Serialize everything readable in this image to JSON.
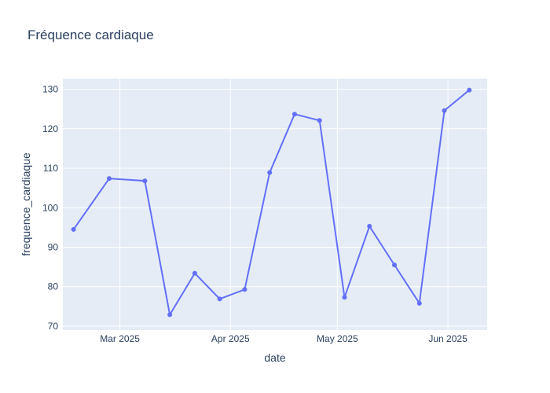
{
  "chart_data": {
    "type": "line",
    "title": "Fréquence cardiaque",
    "xlabel": "date",
    "ylabel": "frequence_cardiaque",
    "x_ticks": [
      {
        "date": "2025-03-01",
        "label": "Mar 2025"
      },
      {
        "date": "2025-04-01",
        "label": "Apr 2025"
      },
      {
        "date": "2025-05-01",
        "label": "May 2025"
      },
      {
        "date": "2025-06-01",
        "label": "Jun 2025"
      }
    ],
    "y_ticks": [
      70,
      80,
      90,
      100,
      110,
      120,
      130
    ],
    "xlim": [
      "2025-02-13",
      "2025-06-12"
    ],
    "ylim": [
      69,
      132.7
    ],
    "grid": true,
    "colors": {
      "line": "#636efa",
      "plot_bg": "#e5ecf6",
      "grid": "#ffffff",
      "text": "#2a3f5f"
    },
    "series": [
      {
        "x": [
          "2025-02-16",
          "2025-02-26",
          "2025-03-08",
          "2025-03-15",
          "2025-03-22",
          "2025-03-29",
          "2025-04-05",
          "2025-04-12",
          "2025-04-19",
          "2025-04-26",
          "2025-05-03",
          "2025-05-10",
          "2025-05-17",
          "2025-05-24",
          "2025-05-31",
          "2025-06-07"
        ],
        "y": [
          94.5,
          107.4,
          106.8,
          72.9,
          83.4,
          76.9,
          79.3,
          108.9,
          123.7,
          122.1,
          77.3,
          95.3,
          85.5,
          75.8,
          124.6,
          129.8
        ]
      }
    ]
  }
}
